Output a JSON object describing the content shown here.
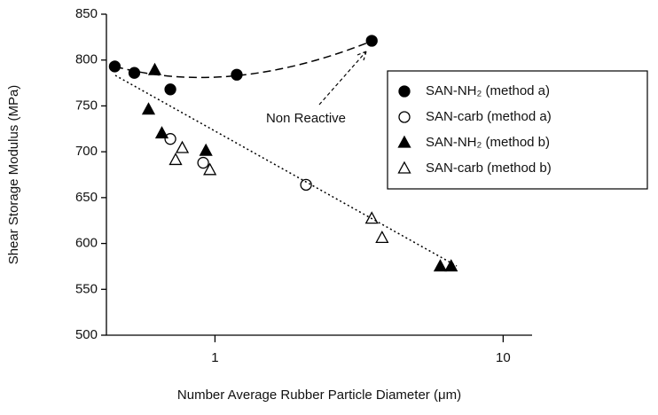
{
  "chart_data": {
    "type": "scatter",
    "x_label": "Number Average Rubber Particle Diameter (μm)",
    "y_label": "Shear Storage Modulus (MPa)",
    "annotation": "Non Reactive",
    "xscale": "log",
    "xlim": [
      0.42,
      12.6
    ],
    "xticks": [
      1,
      10
    ],
    "ylim": [
      500,
      850
    ],
    "yticks": [
      500,
      550,
      600,
      650,
      700,
      750,
      800,
      850
    ],
    "legend": "upper right",
    "series": [
      {
        "name": "SAN-NH₂ (method a)",
        "color": "#000",
        "marker": "circle",
        "fill": "#000",
        "x": [
          0.449,
          0.525,
          0.7,
          1.19,
          3.5
        ],
        "values": [
          793,
          786,
          768,
          784,
          821
        ]
      },
      {
        "name": "SAN-carb (method a)",
        "color": "#000",
        "marker": "circle",
        "fill": "none",
        "x": [
          0.7,
          0.91,
          2.07
        ],
        "values": [
          714,
          688,
          664
        ]
      },
      {
        "name": "SAN-NH₂ (method b)",
        "color": "#000",
        "marker": "triangle",
        "fill": "#000",
        "x": [
          0.618,
          0.588,
          0.654,
          0.93,
          6.05,
          6.6
        ],
        "values": [
          789,
          746,
          720,
          701,
          575,
          575
        ]
      },
      {
        "name": "SAN-carb (method b)",
        "color": "#000",
        "marker": "triangle",
        "fill": "none",
        "x": [
          0.73,
          0.77,
          0.96,
          3.5,
          3.8
        ],
        "values": [
          691,
          704,
          680,
          627,
          606
        ]
      }
    ]
  }
}
